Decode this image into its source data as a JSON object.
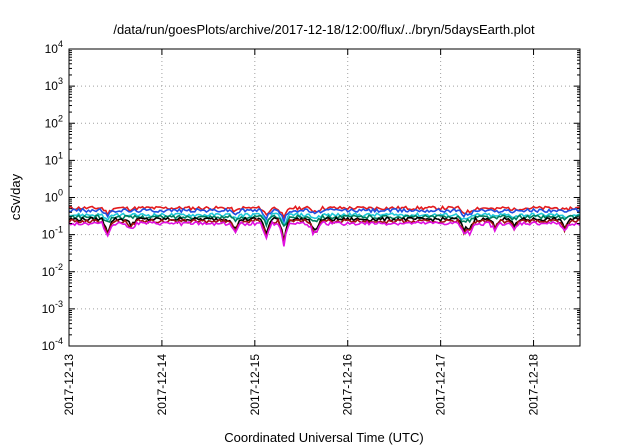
{
  "chart_data": {
    "type": "line",
    "title": "/data/run/goesPlots/archive/2017-12-18/12:00/flux/../bryn/5daysEarth.plot",
    "xlabel": "Coordinated Universal Time (UTC)",
    "ylabel": "cSv/day",
    "yscale": "log",
    "ylim": [
      0.0001,
      10000
    ],
    "xlim": [
      "2017-12-13",
      "2017-12-18 12:00"
    ],
    "y_tick_labels": [
      {
        "base": "10",
        "exp": "-4"
      },
      {
        "base": "10",
        "exp": "-3"
      },
      {
        "base": "10",
        "exp": "-2"
      },
      {
        "base": "10",
        "exp": "-1"
      },
      {
        "base": "10",
        "exp": "0"
      },
      {
        "base": "10",
        "exp": "1"
      },
      {
        "base": "10",
        "exp": "2"
      },
      {
        "base": "10",
        "exp": "3"
      },
      {
        "base": "10",
        "exp": "4"
      }
    ],
    "x_tick_labels": [
      "2017-12-13",
      "2017-12-14",
      "2017-12-15",
      "2017-12-16",
      "2017-12-17",
      "2017-12-18"
    ],
    "grid": true,
    "series": [
      {
        "color": "#e41a1c",
        "level": 0.52
      },
      {
        "color": "#1f4fe0",
        "level": 0.45
      },
      {
        "color": "#20c8d8",
        "level": 0.34
      },
      {
        "color": "#008060",
        "level": 0.3
      },
      {
        "color": "#000000",
        "level": 0.26
      },
      {
        "color": "#a01010",
        "level": 0.23
      },
      {
        "color": "#e010e0",
        "level": 0.2
      }
    ],
    "dips": [
      {
        "date": "2017-12-13 10:00",
        "factor": 0.45
      },
      {
        "date": "2017-12-13 16:00",
        "factor": 0.7
      },
      {
        "date": "2017-12-14 19:00",
        "factor": 0.55
      },
      {
        "date": "2017-12-15 03:00",
        "factor": 0.4
      },
      {
        "date": "2017-12-15 07:30",
        "factor": 0.27
      },
      {
        "date": "2017-12-15 15:00",
        "factor": 0.65
      },
      {
        "date": "2017-12-15 16:00",
        "factor": 0.6
      },
      {
        "date": "2017-12-17 06:00",
        "factor": 0.5
      },
      {
        "date": "2017-12-17 07:30",
        "factor": 0.55
      },
      {
        "date": "2017-12-17 14:00",
        "factor": 0.65
      },
      {
        "date": "2017-12-17 19:00",
        "factor": 0.65
      },
      {
        "date": "2017-12-18 08:00",
        "factor": 0.6
      }
    ]
  }
}
